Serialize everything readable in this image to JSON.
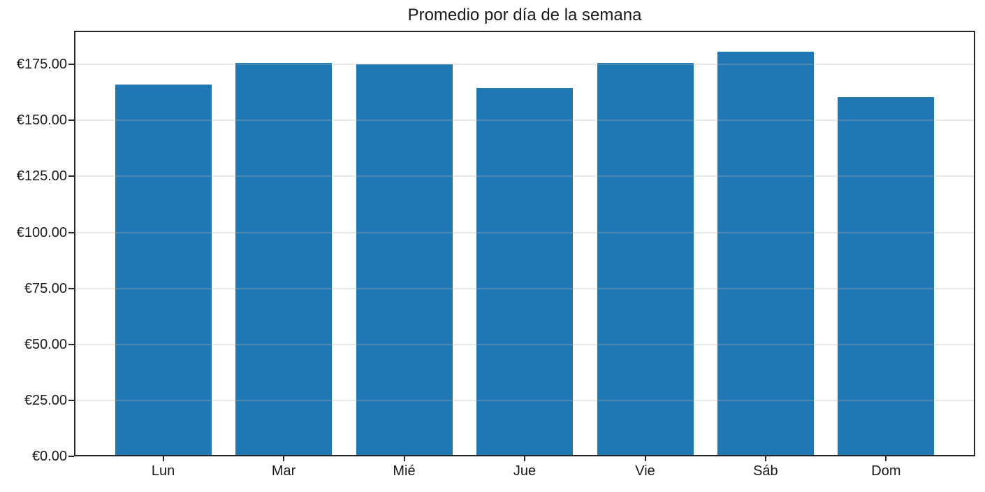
{
  "chart_data": {
    "type": "bar",
    "title": "Promedio por día de la semana",
    "categories": [
      "Lun",
      "Mar",
      "Mié",
      "Jue",
      "Vie",
      "Sáb",
      "Dom"
    ],
    "values": [
      166.0,
      175.6,
      175.0,
      164.3,
      175.7,
      180.7,
      160.4
    ],
    "xlabel": "",
    "ylabel": "",
    "ylim": [
      0,
      190
    ],
    "xlim": [
      -0.74,
      6.74
    ],
    "yticks": [
      0,
      25,
      50,
      75,
      100,
      125,
      150,
      175
    ],
    "ytick_labels": [
      "€0.00",
      "€25.00",
      "€50.00",
      "€75.00",
      "€100.00",
      "€125.00",
      "€150.00",
      "€175.00"
    ],
    "bar_color": "#1f77b4",
    "bar_width_fraction": 0.8,
    "grid": "horizontal-only",
    "grid_color": "#b0b0b0",
    "grid_alpha": 0.3,
    "spine_color": "#262626",
    "text_color": "#1a1a1a",
    "legend": false
  }
}
